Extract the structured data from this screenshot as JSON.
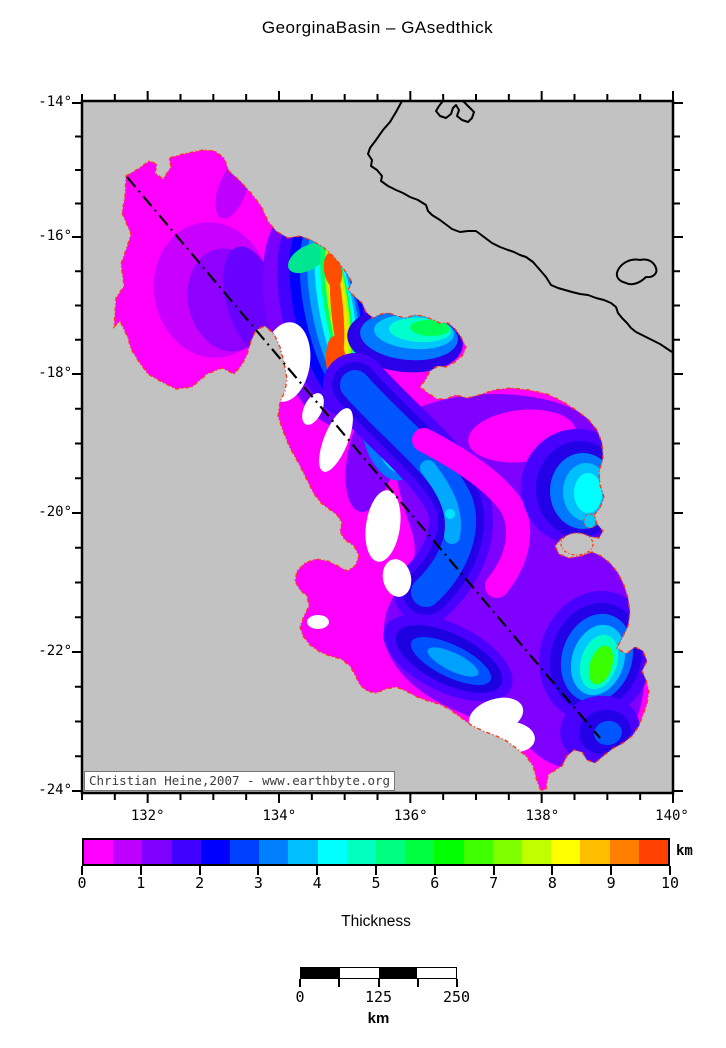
{
  "title": "GeorginaBasin – GAsedthick",
  "map": {
    "land_color": "#C2C2C2",
    "basin_outline_color": "#FF3A14",
    "y_axis_labels": [
      "-14°",
      "-16°",
      "-18°",
      "-20°",
      "-22°",
      "-24°"
    ],
    "x_axis_labels": [
      "132°",
      "134°",
      "136°",
      "138°",
      "140°"
    ],
    "attribution": "Christian Heine,2007 - www.earthbyte.org"
  },
  "colorbar": {
    "label": "Thickness",
    "unit": "km",
    "tick_labels": [
      "0",
      "1",
      "2",
      "3",
      "4",
      "5",
      "6",
      "7",
      "8",
      "9",
      "10"
    ],
    "segment_colors": [
      "#FF00FF",
      "#BF00FF",
      "#8000FF",
      "#4000FF",
      "#0000FF",
      "#0040FF",
      "#0080FF",
      "#00BFFF",
      "#00FFFF",
      "#00FFBF",
      "#00FF80",
      "#00FF40",
      "#00FF00",
      "#40FF00",
      "#80FF00",
      "#BFFF00",
      "#FFFF00",
      "#FFBF00",
      "#FF8000",
      "#FF4000"
    ]
  },
  "scalebar": {
    "tick_labels": [
      "0",
      "125",
      "250"
    ],
    "unit": "km",
    "segment_colors": [
      "#000000",
      "#FFFFFF",
      "#000000",
      "#FFFFFF"
    ]
  },
  "chart_data": {
    "type": "map",
    "title": "GeorginaBasin – GAsedthick",
    "projection": "Mercator",
    "lon_range_deg": [
      131,
      140
    ],
    "lat_range_deg": [
      -24,
      -14
    ],
    "lon_tick_labels_deg": [
      132,
      134,
      136,
      138,
      140
    ],
    "lat_tick_labels_deg": [
      -14,
      -16,
      -18,
      -20,
      -22,
      -24
    ],
    "colorbar": {
      "label": "Thickness",
      "unit": "km",
      "min": 0,
      "max": 10,
      "step": 0.5
    },
    "scalebar_km": [
      0,
      125,
      250
    ],
    "features": [
      "coastline",
      "basin-outline-red-dashdot",
      "transect-dashdot-line",
      "no-data-white-patches"
    ],
    "attribution": "Christian Heine,2007 - www.earthbyte.org"
  }
}
